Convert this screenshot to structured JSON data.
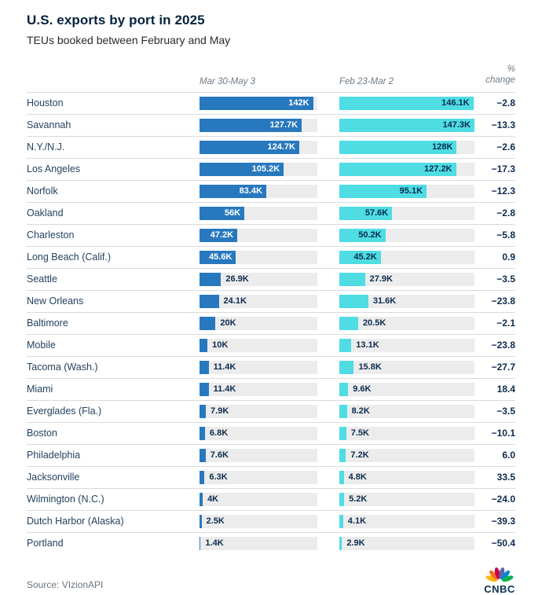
{
  "title": "U.S. exports by port in 2025",
  "subtitle": "TEUs booked between February and May",
  "columns": {
    "period1": "Mar 30-May 3",
    "period2": "Feb 23-Mar 2",
    "change_line1": "%",
    "change_line2": "change"
  },
  "footer": {
    "source": "Source: VIzionAPI",
    "brand": "CNBC"
  },
  "colors": {
    "bar_period1": "#2878be",
    "bar_period2": "#4fdce3",
    "track": "#ececec",
    "text_navy": "#0b2b4d",
    "separator": "#dadada"
  },
  "chart_data": {
    "type": "bar",
    "orientation": "horizontal",
    "title": "U.S. exports by port in 2025",
    "subtitle": "TEUs booked between February and May",
    "unit": "TEUs, thousands (K)",
    "value_axis_max_k": 147.3,
    "legend_position": "column headers",
    "grid": false,
    "categories": [
      "Houston",
      "Savannah",
      "N.Y./N.J.",
      "Los Angeles",
      "Norfolk",
      "Oakland",
      "Charleston",
      "Long Beach (Calif.)",
      "Seattle",
      "New Orleans",
      "Baltimore",
      "Mobile",
      "Tacoma (Wash.)",
      "Miami",
      "Everglades (Fla.)",
      "Boston",
      "Philadelphia",
      "Jacksonville",
      "Wilmington (N.C.)",
      "Dutch Harbor (Alaska)",
      "Portland"
    ],
    "series": [
      {
        "name": "Mar 30-May 3",
        "color": "#2878be",
        "values": [
          142,
          127.7,
          124.7,
          105.2,
          83.4,
          56,
          47.2,
          45.6,
          26.9,
          24.1,
          20,
          10,
          11.4,
          11.4,
          7.9,
          6.8,
          7.6,
          6.3,
          4,
          2.5,
          1.4
        ],
        "labels": [
          "142K",
          "127.7K",
          "124.7K",
          "105.2K",
          "83.4K",
          "56K",
          "47.2K",
          "45.6K",
          "26.9K",
          "24.1K",
          "20K",
          "10K",
          "11.4K",
          "11.4K",
          "7.9K",
          "6.8K",
          "7.6K",
          "6.3K",
          "4K",
          "2.5K",
          "1.4K"
        ]
      },
      {
        "name": "Feb 23-Mar 2",
        "color": "#4fdce3",
        "values": [
          146.1,
          147.3,
          128,
          127.2,
          95.1,
          57.6,
          50.2,
          45.2,
          27.9,
          31.6,
          20.5,
          13.1,
          15.8,
          9.6,
          8.2,
          7.5,
          7.2,
          4.8,
          5.2,
          4.1,
          2.9
        ],
        "labels": [
          "146.1K",
          "147.3K",
          "128K",
          "127.2K",
          "95.1K",
          "57.6K",
          "50.2K",
          "45.2K",
          "27.9K",
          "31.6K",
          "20.5K",
          "13.1K",
          "15.8K",
          "9.6K",
          "8.2K",
          "7.5K",
          "7.2K",
          "4.8K",
          "5.2K",
          "4.1K",
          "2.9K"
        ]
      }
    ],
    "pct_change": [
      -2.8,
      -13.3,
      -2.6,
      -17.3,
      -12.3,
      -2.8,
      -5.8,
      0.9,
      -3.5,
      -23.8,
      -2.1,
      -23.8,
      -27.7,
      18.4,
      -3.5,
      -10.1,
      6.0,
      33.5,
      -24.0,
      -39.3,
      -50.4
    ],
    "pct_change_labels": [
      "−2.8",
      "−13.3",
      "−2.6",
      "−17.3",
      "−12.3",
      "−2.8",
      "−5.8",
      "0.9",
      "−3.5",
      "−23.8",
      "−2.1",
      "−23.8",
      "−27.7",
      "18.4",
      "−3.5",
      "−10.1",
      "6.0",
      "33.5",
      "−24.0",
      "−39.3",
      "−50.4"
    ]
  }
}
